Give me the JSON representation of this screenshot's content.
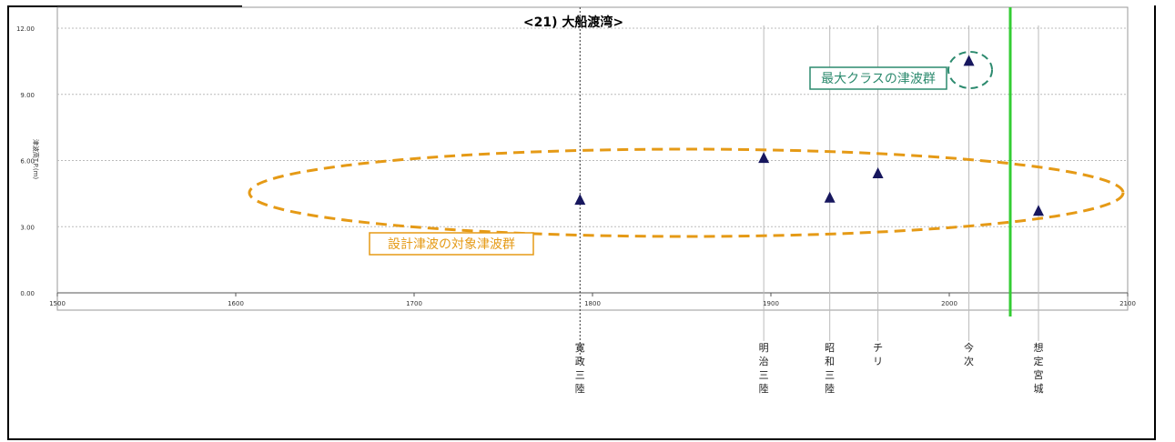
{
  "chart_data": {
    "type": "scatter",
    "title": "<21) 大船渡湾>",
    "ylabel": "津波高T.P.(m)",
    "xlabel": "",
    "xlim": [
      1500,
      2100
    ],
    "ylim": [
      0,
      12
    ],
    "x_ticks": [
      "1500",
      "1600",
      "1700",
      "1800",
      "1900",
      "2000",
      "2100"
    ],
    "y_ticks": [
      "0.00",
      "3.00",
      "6.00",
      "9.00",
      "12.00"
    ],
    "grid": true,
    "marker": "triangle",
    "colors": {
      "marker": "#17175e",
      "design_group": "#e59a16",
      "max_group": "#2c8a6e",
      "divider": "#33cc33"
    },
    "points": [
      {
        "event": "寛政三陸",
        "x": 1793,
        "y": 4.2
      },
      {
        "event": "明治三陸",
        "x": 1896,
        "y": 6.1
      },
      {
        "event": "昭和三陸",
        "x": 1933,
        "y": 4.3
      },
      {
        "event": "チリ",
        "x": 1960,
        "y": 5.4
      },
      {
        "event": "今次",
        "x": 2011,
        "y": 10.5
      },
      {
        "event": "想定宮城",
        "x": 2050,
        "y": 3.7
      }
    ],
    "annotations": {
      "design_group": "設計津波の対象津波群",
      "max_group": "最大クラスの津波群"
    }
  }
}
